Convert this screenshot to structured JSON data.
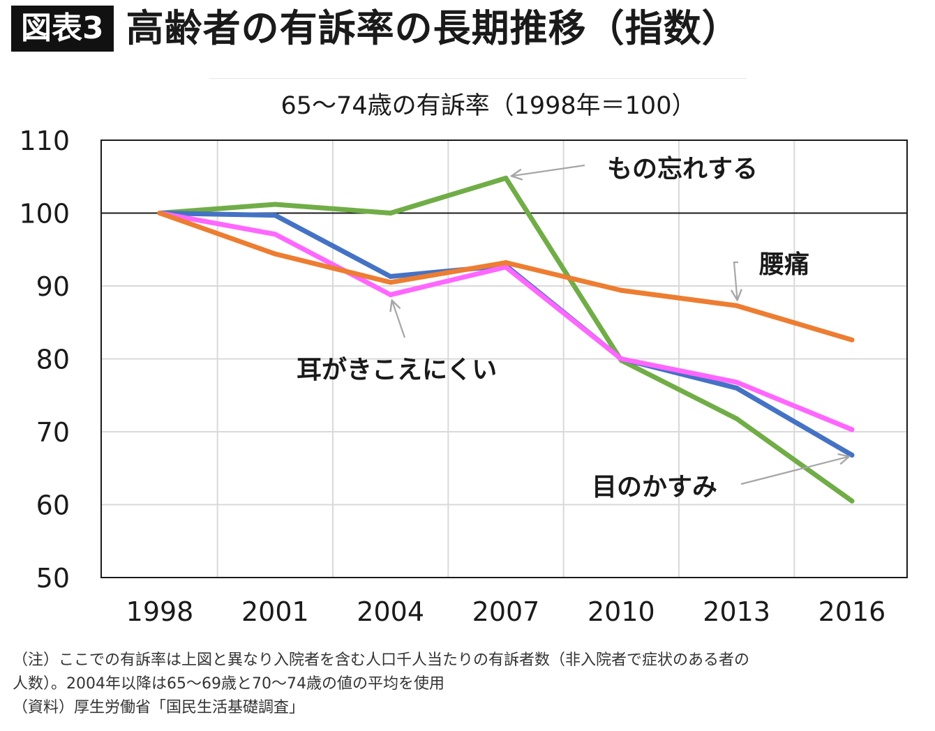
{
  "header": {
    "badge": "図表3",
    "title": "高齢者の有訴率の長期推移（指数）"
  },
  "chart_data": {
    "type": "line",
    "title": "65〜74歳の有訴率（1998年＝100）",
    "xlabel": "",
    "ylabel": "",
    "categories": [
      "1998",
      "2001",
      "2004",
      "2007",
      "2010",
      "2013",
      "2016"
    ],
    "ylim": [
      50,
      110
    ],
    "yticks": [
      50,
      60,
      70,
      80,
      90,
      100,
      110
    ],
    "grid": true,
    "reference_line": 100,
    "series": [
      {
        "name": "もの忘れする",
        "color": "#70ad47",
        "values": [
          100,
          101.2,
          100,
          104.8,
          79.8,
          71.8,
          60.5
        ]
      },
      {
        "name": "目のかすみ",
        "color": "#4472c4",
        "values": [
          100,
          99.7,
          91.3,
          92.8,
          80.0,
          76.0,
          66.8
        ]
      },
      {
        "name": "耳がきこえにくい",
        "color": "#ff66ff",
        "values": [
          100,
          97.1,
          88.8,
          92.6,
          80.0,
          76.8,
          70.3
        ]
      },
      {
        "name": "腰痛",
        "color": "#ed7d31",
        "values": [
          100,
          94.4,
          90.5,
          93.2,
          89.4,
          87.3,
          82.6
        ]
      }
    ]
  },
  "notes": [
    "（注）ここでの有訴率は上図と異なり入院者を含む人口千人当たりの有訴者数（非入院者で症状のある者の",
    "人数）。2004年以降は65〜69歳と70〜74歳の値の平均を使用",
    "（資料）厚生労働省「国民生活基礎調査」"
  ]
}
